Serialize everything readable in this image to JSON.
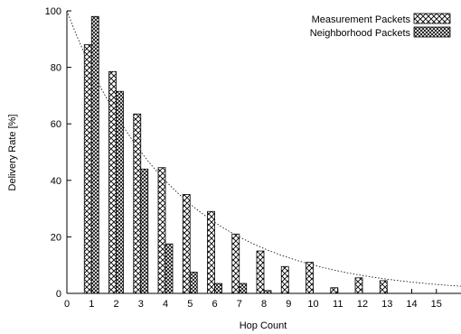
{
  "chart_data": {
    "type": "bar",
    "title": "",
    "xlabel": "Hop Count",
    "ylabel": "Delivery Rate [%]",
    "ylim": [
      0,
      100
    ],
    "xlim": [
      0,
      16
    ],
    "x_ticks": [
      "0",
      "1",
      "2",
      "3",
      "4",
      "5",
      "6",
      "7",
      "8",
      "9",
      "10",
      "11",
      "12",
      "13",
      "14",
      "15"
    ],
    "y_ticks": [
      "0",
      "20",
      "40",
      "60",
      "80",
      "100"
    ],
    "categories": [
      1,
      2,
      3,
      4,
      5,
      6,
      7,
      8,
      9,
      10,
      11,
      12,
      13,
      14,
      15
    ],
    "series": [
      {
        "name": "Measurement Packets",
        "pattern": "crosshatch",
        "values": [
          88,
          78.5,
          63.5,
          44.5,
          35,
          29,
          21,
          15,
          9.5,
          11,
          2,
          5.5,
          4.5,
          0,
          0
        ]
      },
      {
        "name": "Neighborhood Packets",
        "pattern": "dense-crosshatch",
        "values": [
          98,
          71.5,
          44,
          17.5,
          7.5,
          3.5,
          3.5,
          1,
          0,
          0,
          0,
          0,
          0,
          0,
          0
        ]
      }
    ],
    "trend_line": {
      "style": "dotted",
      "function": "100*exp(-0.23*x)"
    },
    "legend_position": "top-right",
    "grid": false
  }
}
